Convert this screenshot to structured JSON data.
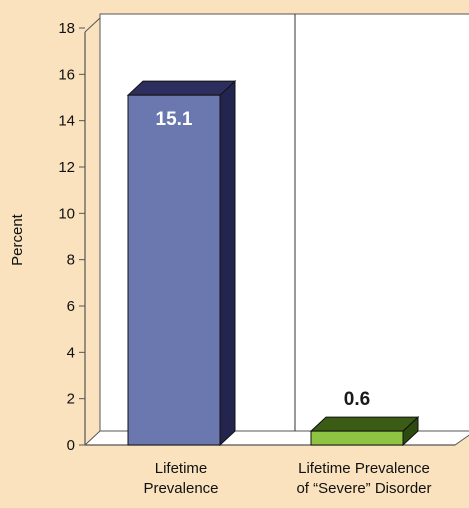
{
  "chart_data": {
    "type": "bar",
    "categories": [
      [
        "Lifetime",
        "Prevalence"
      ],
      [
        "Lifetime Prevalence",
        "of “Severe” Disorder"
      ]
    ],
    "values": [
      15.1,
      0.6
    ],
    "value_labels": [
      "15.1",
      "0.6"
    ],
    "ylabel": "Percent",
    "ylim": [
      0,
      18
    ],
    "yticks": [
      "0",
      "2",
      "4",
      "6",
      "8",
      "10",
      "12",
      "14",
      "16",
      "18"
    ],
    "grid": false,
    "style": "3d",
    "bar_colors": [
      {
        "front": "#6b78b0",
        "top": "#2d2e5e",
        "side": "#24254f"
      },
      {
        "front": "#8ec441",
        "top": "#3a5c14",
        "side": "#2d4a0f"
      }
    ],
    "label_colors": [
      "#ffffff",
      "#1a1a1a"
    ]
  },
  "colors": {
    "background": "#f9e2bd",
    "plot_area": "#ffffff",
    "axis": "#555555",
    "divider": "#333333"
  }
}
